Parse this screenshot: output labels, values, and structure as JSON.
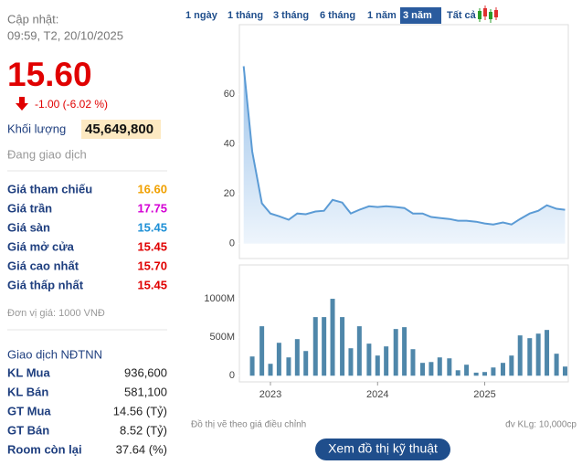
{
  "header": {
    "label": "Cập nhật:",
    "time": "09:59, T2, 20/10/2025"
  },
  "quote": {
    "price": "15.60",
    "change": "-1.00 (-6.02 %)",
    "volume_label": "Khối lượng",
    "volume": "45,649,800",
    "status": "Đang giao dịch"
  },
  "price_rows": [
    {
      "label": "Giá tham chiếu",
      "value": "16.60",
      "color": "#f0a000"
    },
    {
      "label": "Giá trần",
      "value": "17.75",
      "color": "#d400d4"
    },
    {
      "label": "Giá sàn",
      "value": "15.45",
      "color": "#1e90d6"
    },
    {
      "label": "Giá mở cửa",
      "value": "15.45",
      "color": "#e00000"
    },
    {
      "label": "Giá cao nhất",
      "value": "15.70",
      "color": "#e00000"
    },
    {
      "label": "Giá thấp nhất",
      "value": "15.45",
      "color": "#e00000"
    }
  ],
  "unit_note": "Đơn vị giá: 1000 VNĐ",
  "foreign": {
    "title": "Giao dịch NĐTNN",
    "rows": [
      {
        "label": "KL Mua",
        "value": "936,600"
      },
      {
        "label": "KL Bán",
        "value": "581,100"
      },
      {
        "label": "GT Mua",
        "value": "14.56 (Tỷ)"
      },
      {
        "label": "GT Bán",
        "value": "8.52 (Tỷ)"
      },
      {
        "label": "Room còn lại",
        "value": "37.64 (%)"
      }
    ]
  },
  "tabs": {
    "items": [
      "1 ngày",
      "1 tháng",
      "3 tháng",
      "6 tháng",
      "1 năm",
      "3 năm",
      "Tất cả"
    ],
    "active": 5
  },
  "chart_data": [
    {
      "type": "area",
      "color": "#5b9bd5",
      "x": [
        2022.75,
        2022.83,
        2022.92,
        2023,
        2023.08,
        2023.17,
        2023.25,
        2023.33,
        2023.42,
        2023.5,
        2023.58,
        2023.67,
        2023.75,
        2023.83,
        2023.92,
        2024,
        2024.08,
        2024.17,
        2024.25,
        2024.33,
        2024.42,
        2024.5,
        2024.58,
        2024.67,
        2024.75,
        2024.83,
        2024.92,
        2025,
        2025.08,
        2025.17,
        2025.25,
        2025.33,
        2025.42,
        2025.5,
        2025.58,
        2025.67,
        2025.75
      ],
      "values": [
        71.3,
        37,
        16.2,
        12.1,
        11,
        9.6,
        12.1,
        11.8,
        12.9,
        13.2,
        17.6,
        16.5,
        12.1,
        13.6,
        15,
        14.7,
        15,
        14.7,
        14.3,
        12.1,
        12.1,
        10.7,
        10.3,
        9.9,
        9.2,
        9.2,
        8.8,
        8.1,
        7.7,
        8.5,
        7.7,
        9.9,
        12.1,
        13.2,
        15.4,
        14,
        13.6
      ],
      "xlim": [
        2022.71,
        2025.78
      ],
      "ylim": [
        -6,
        88
      ],
      "yticks": [
        0,
        20,
        40,
        60
      ]
    },
    {
      "type": "bar",
      "color": "#4f87aa",
      "x": [
        2022.83,
        2022.92,
        2023,
        2023.08,
        2023.17,
        2023.25,
        2023.33,
        2023.42,
        2023.5,
        2023.58,
        2023.67,
        2023.75,
        2023.83,
        2023.92,
        2024,
        2024.08,
        2024.17,
        2024.25,
        2024.33,
        2024.42,
        2024.5,
        2024.58,
        2024.67,
        2024.75,
        2024.83,
        2024.92,
        2025,
        2025.08,
        2025.17,
        2025.25,
        2025.33,
        2025.42,
        2025.5,
        2025.58,
        2025.67,
        2025.75
      ],
      "values": [
        250,
        643,
        155,
        428,
        238,
        476,
        321,
        762,
        762,
        1000,
        762,
        357,
        643,
        417,
        262,
        381,
        607,
        631,
        345,
        167,
        178,
        238,
        226,
        71,
        143,
        40,
        48,
        107,
        167,
        262,
        524,
        488,
        547,
        595,
        286,
        119
      ],
      "xlim": [
        2022.71,
        2025.78
      ],
      "ylim": [
        -80,
        1440
      ],
      "yticks": [
        0,
        {
          "value": 500,
          "label": "500M"
        },
        {
          "value": 1000,
          "label": "1000M"
        }
      ],
      "xticks": [
        2023,
        2024,
        2025
      ]
    }
  ],
  "footer": {
    "note": "Đồ thị vẽ theo giá điều chỉnh",
    "unit": "đv KLg: 10,000cp",
    "button": "Xem đồ thị kỹ thuật"
  }
}
